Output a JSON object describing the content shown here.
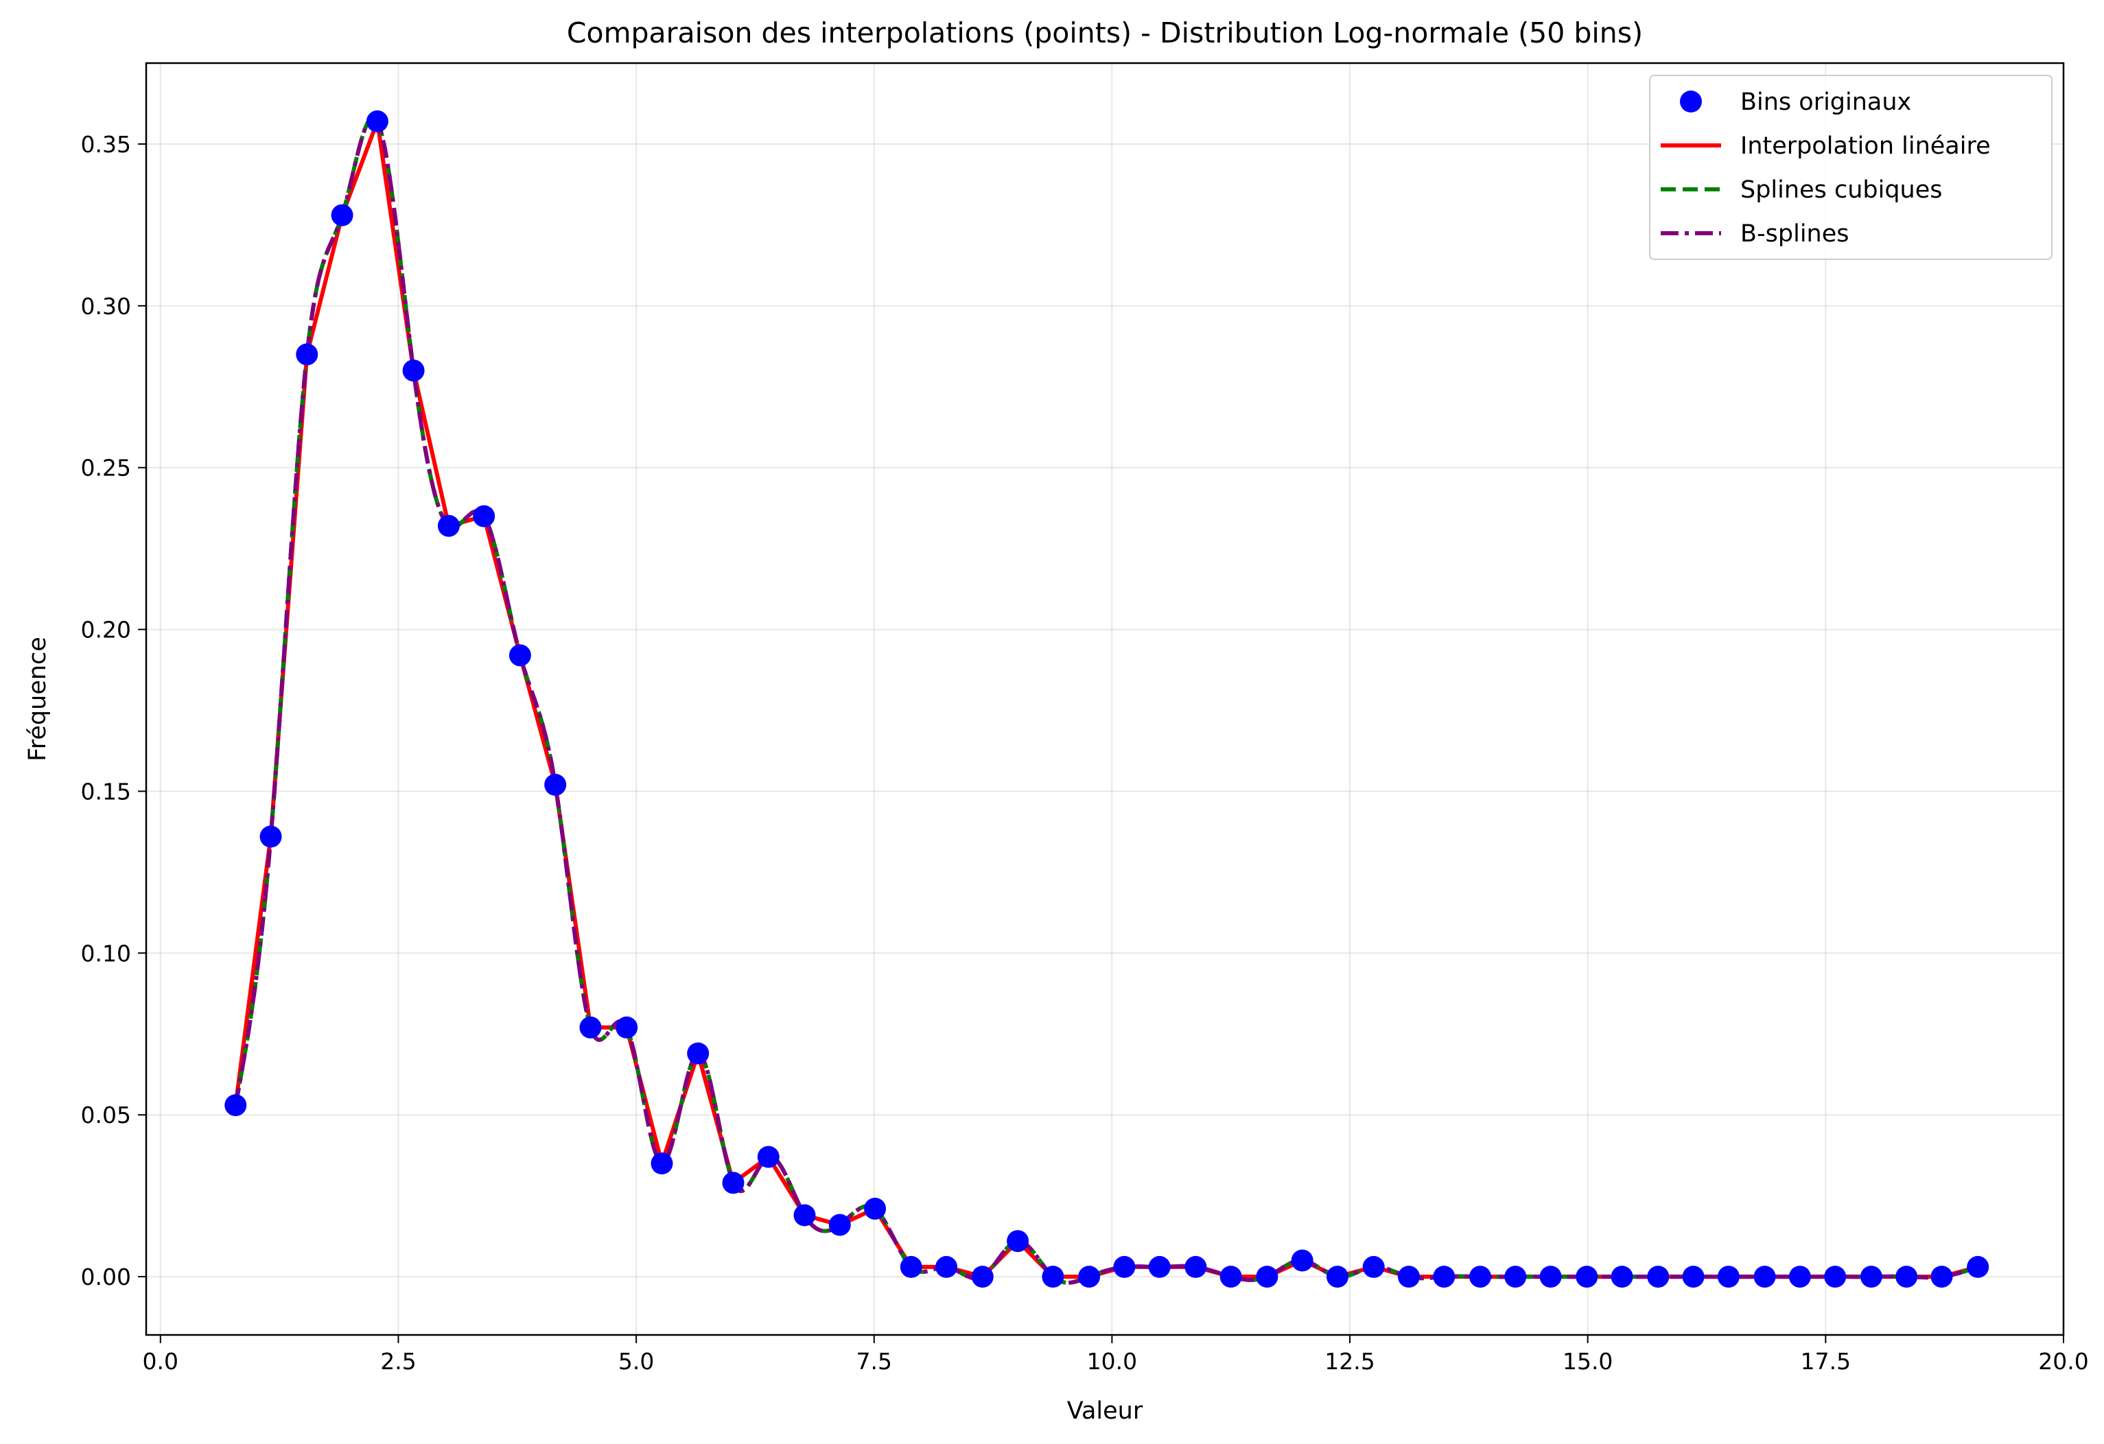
{
  "chart_data": {
    "type": "line",
    "title": "Comparaison des interpolations (points) - Distribution Log-normale (50 bins)",
    "xlabel": "Valeur",
    "ylabel": "Fréquence",
    "xlim": [
      -0.15,
      20.0
    ],
    "ylim": [
      -0.018,
      0.375
    ],
    "xticks": [
      0.0,
      2.5,
      5.0,
      7.5,
      10.0,
      12.5,
      15.0,
      17.5,
      20.0
    ],
    "xtick_labels": [
      "0.0",
      "2.5",
      "5.0",
      "7.5",
      "10.0",
      "12.5",
      "15.0",
      "17.5",
      "20.0"
    ],
    "yticks": [
      0.0,
      0.05,
      0.1,
      0.15,
      0.2,
      0.25,
      0.3,
      0.35
    ],
    "ytick_labels": [
      "0.00",
      "0.05",
      "0.10",
      "0.15",
      "0.20",
      "0.25",
      "0.30",
      "0.35"
    ],
    "grid": true,
    "legend_position": "top-right",
    "x": [
      0.79,
      1.16,
      1.54,
      1.91,
      2.28,
      2.66,
      3.03,
      3.4,
      3.78,
      4.15,
      4.52,
      4.9,
      5.27,
      5.65,
      6.02,
      6.39,
      6.77,
      7.14,
      7.51,
      7.89,
      8.26,
      8.64,
      9.01,
      9.38,
      9.76,
      10.13,
      10.5,
      10.88,
      11.25,
      11.63,
      12.0,
      12.37,
      12.75,
      13.12,
      13.49,
      13.87,
      14.24,
      14.61,
      14.99,
      15.36,
      15.74,
      16.11,
      16.48,
      16.86,
      17.23,
      17.6,
      17.98,
      18.35,
      18.72,
      19.1
    ],
    "y": [
      0.053,
      0.136,
      0.285,
      0.328,
      0.357,
      0.28,
      0.232,
      0.235,
      0.192,
      0.152,
      0.077,
      0.077,
      0.035,
      0.069,
      0.029,
      0.037,
      0.019,
      0.016,
      0.021,
      0.003,
      0.003,
      0.0,
      0.011,
      0.0,
      0.0,
      0.003,
      0.003,
      0.003,
      0.0,
      0.0,
      0.005,
      0.0,
      0.003,
      0.0,
      0.0,
      0.0,
      0.0,
      0.0,
      0.0,
      0.0,
      0.0,
      0.0,
      0.0,
      0.0,
      0.0,
      0.0,
      0.0,
      0.0,
      0.0,
      0.003
    ],
    "series": [
      {
        "name": "Bins originaux",
        "style": "points",
        "color": "#0000ff"
      },
      {
        "name": "Interpolation linéaire",
        "style": "solid",
        "color": "#ff0000"
      },
      {
        "name": "Splines cubiques",
        "style": "dashed",
        "color": "#008000"
      },
      {
        "name": "B-splines",
        "style": "dashdot",
        "color": "#800080"
      }
    ]
  }
}
